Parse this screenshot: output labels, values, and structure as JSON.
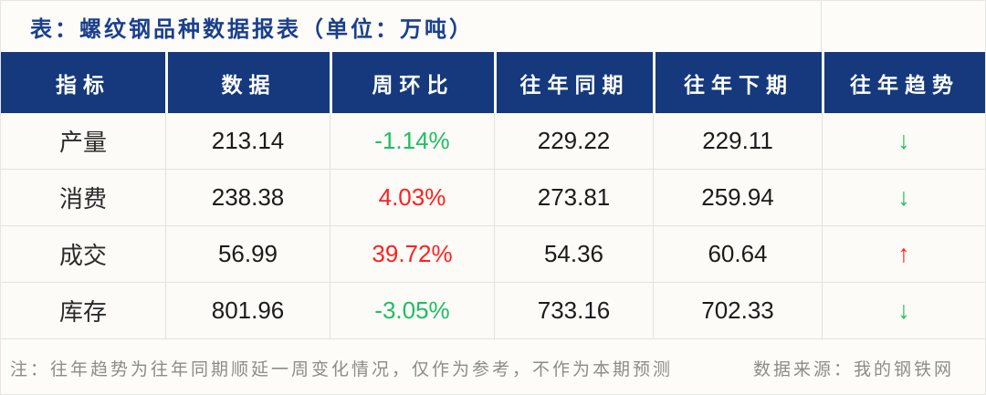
{
  "title": "表：螺纹钢品种数据报表（单位：万吨）",
  "chart_data": {
    "type": "table",
    "title": "表：螺纹钢品种数据报表（单位：万吨）",
    "unit": "万吨",
    "columns": [
      "指标",
      "数据",
      "周环比",
      "往年同期",
      "往年下期",
      "往年趋势"
    ],
    "rows": [
      {
        "indicator": "产量",
        "data": "213.14",
        "wow": "-1.14%",
        "wow_class": "c-green",
        "prev_same": "229.22",
        "prev_next": "229.11",
        "trend": "↓",
        "trend_class": "c-green"
      },
      {
        "indicator": "消费",
        "data": "238.38",
        "wow": "4.03%",
        "wow_class": "c-red",
        "prev_same": "273.81",
        "prev_next": "259.94",
        "trend": "↓",
        "trend_class": "c-green"
      },
      {
        "indicator": "成交",
        "data": "56.99",
        "wow": "39.72%",
        "wow_class": "c-red",
        "prev_same": "54.36",
        "prev_next": "60.64",
        "trend": "↑",
        "trend_class": "c-red"
      },
      {
        "indicator": "库存",
        "data": "801.96",
        "wow": "-3.05%",
        "wow_class": "c-green",
        "prev_same": "733.16",
        "prev_next": "702.33",
        "trend": "↓",
        "trend_class": "c-green"
      }
    ]
  },
  "footer": {
    "note": "注：往年趋势为往年同期顺延一周变化情况，仅作为参考，不作为本期预测",
    "source": "数据来源：我的钢铁网"
  },
  "colors": {
    "header_bg": "#15397C",
    "title_text": "#1A3F8C",
    "green": "#1EBE62",
    "red": "#FF1F1F",
    "row_bg": "#FCFBF7",
    "grid_line": "#E2E2DF",
    "muted_text": "#8C8C8A"
  }
}
